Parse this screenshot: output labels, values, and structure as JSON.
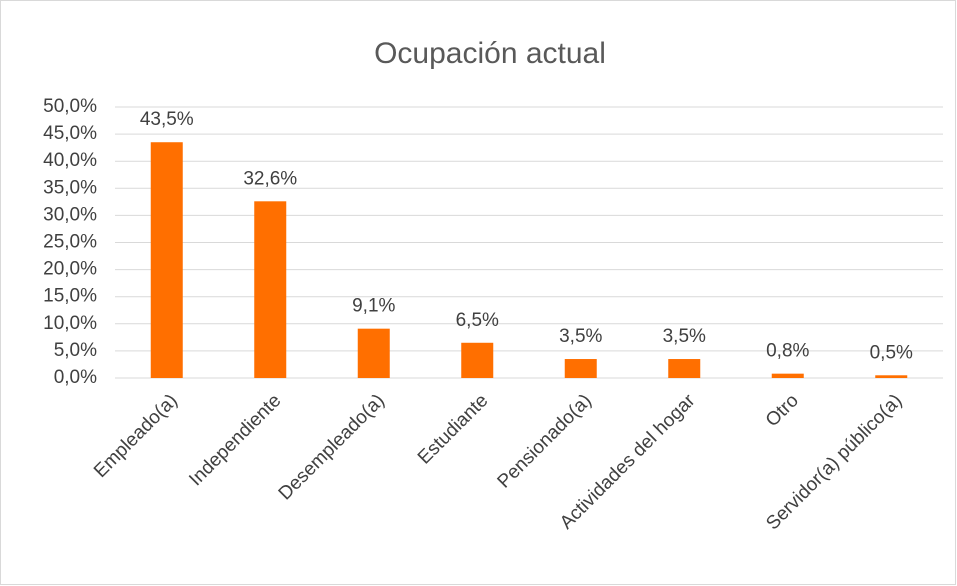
{
  "chart_data": {
    "type": "bar",
    "title": "Ocupación actual",
    "categories": [
      "Empleado(a)",
      "Independiente",
      "Desempleado(a)",
      "Estudiante",
      "Pensionado(a)",
      "Actividades del hogar",
      "Otro",
      "Servidor(a) público(a)"
    ],
    "values": [
      43.5,
      32.6,
      9.1,
      6.5,
      3.5,
      3.5,
      0.8,
      0.5
    ],
    "value_labels": [
      "43,5%",
      "32,6%",
      "9,1%",
      "6,5%",
      "3,5%",
      "3,5%",
      "0,8%",
      "0,5%"
    ],
    "color": "#ff6f00",
    "ylim": [
      0,
      50
    ],
    "yticks": [
      {
        "value": 0,
        "label": "0,0%"
      },
      {
        "value": 5,
        "label": "5,0%"
      },
      {
        "value": 10,
        "label": "10,0%"
      },
      {
        "value": 15,
        "label": "15,0%"
      },
      {
        "value": 20,
        "label": "20,0%"
      },
      {
        "value": 25,
        "label": "25,0%"
      },
      {
        "value": 30,
        "label": "30,0%"
      },
      {
        "value": 35,
        "label": "35,0%"
      },
      {
        "value": 40,
        "label": "40,0%"
      },
      {
        "value": 45,
        "label": "45,0%"
      },
      {
        "value": 50,
        "label": "50,0%"
      }
    ],
    "grid": true
  }
}
